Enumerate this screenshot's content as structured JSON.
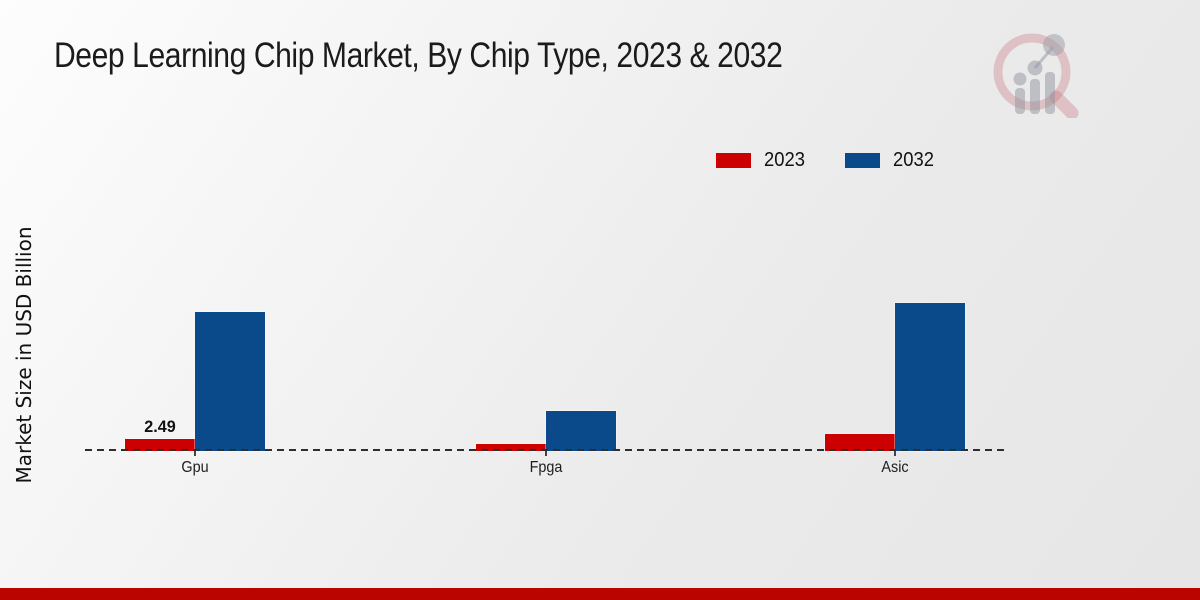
{
  "page": {
    "footer_band_color": "#b90400",
    "background_color": "#ededed"
  },
  "icons": {
    "watermark": "magnifier-growth-chart-logo"
  },
  "chart_data": {
    "type": "bar",
    "title": "Deep Learning Chip Market, By Chip Type, 2023 & 2032",
    "ylabel": "Market Size in USD Billion",
    "xlabel": "",
    "categories": [
      "Gpu",
      "Fpga",
      "Asic"
    ],
    "series": [
      {
        "name": "2023",
        "color": "#cc0000",
        "values": [
          2.49,
          1.35,
          3.5
        ],
        "labels": [
          "2.49",
          "",
          ""
        ]
      },
      {
        "name": "2032",
        "color": "#0b4a8a",
        "values": [
          28.8,
          8.2,
          30.7
        ],
        "labels": [
          "",
          "",
          ""
        ]
      }
    ],
    "ylim": [
      0,
      40
    ],
    "grid": false,
    "axis_style": "dashed-baseline-only",
    "legend_position": "top-right"
  }
}
